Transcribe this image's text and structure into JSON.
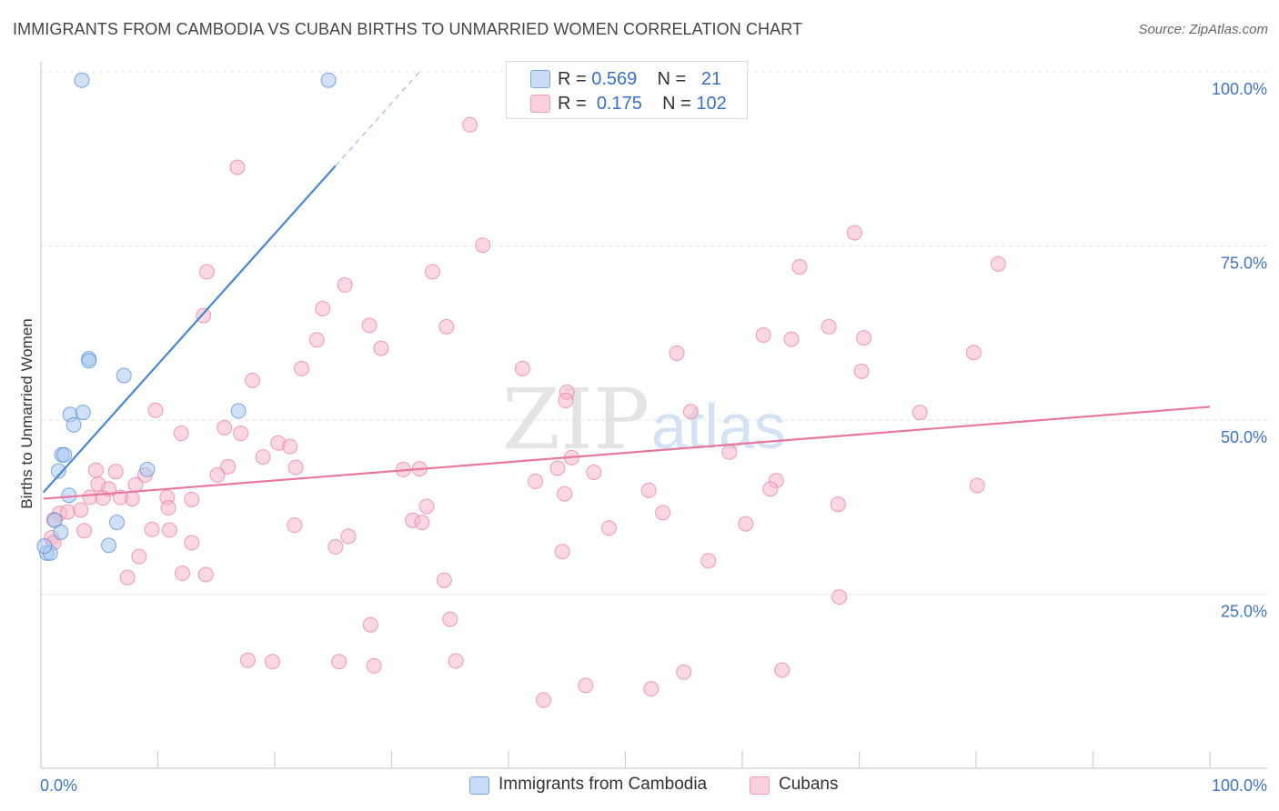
{
  "header": {
    "title": "IMMIGRANTS FROM CAMBODIA VS CUBAN BIRTHS TO UNMARRIED WOMEN CORRELATION CHART",
    "source": "Source: ZipAtlas.com"
  },
  "watermark": {
    "zip": "ZIP",
    "atlas": "atlas"
  },
  "legend": {
    "rows": [
      {
        "r_label": "R =",
        "r": "0.569",
        "n_label": "N =",
        "n": "21",
        "color": "#a9c8f0"
      },
      {
        "r_label": "R =",
        "r": "0.175",
        "n_label": "N =",
        "n": "102",
        "color": "#f7b6cb"
      }
    ]
  },
  "bottom_legend": {
    "items": [
      {
        "label": "Immigrants from Cambodia",
        "color": "#a9c8f0"
      },
      {
        "label": "Cubans",
        "color": "#f7b6cb"
      }
    ]
  },
  "chart_data": {
    "type": "scatter",
    "title": "IMMIGRANTS FROM CAMBODIA VS CUBAN BIRTHS TO UNMARRIED WOMEN CORRELATION CHART",
    "xlabel": "",
    "ylabel": "Births to Unmarried Women",
    "xlim": [
      0,
      100
    ],
    "ylim": [
      0,
      100
    ],
    "x_tick_labels": [
      "0.0%",
      "100.0%"
    ],
    "y_tick_labels": [
      "100.0%",
      "75.0%",
      "50.0%",
      "25.0%"
    ],
    "y_ticks": [
      100,
      75,
      50,
      25
    ],
    "grid": "horizontal dashed",
    "legend_position": "top-center",
    "colors": {
      "cambodia": "#4a86d4",
      "cubans": "#e8779e"
    },
    "series": [
      {
        "name": "Immigrants from Cambodia",
        "color": "#a9c8f0",
        "stroke": "#4a86d4",
        "trend": {
          "x0": 0.2,
          "y0": 39.6,
          "x1": 25.2,
          "y1": 86.5,
          "dash_to_x": 32.4,
          "dash_to_y": 100
        },
        "points": [
          [
            3.5,
            98.8
          ],
          [
            24.6,
            98.8
          ],
          [
            4.1,
            58.8
          ],
          [
            4.1,
            58.5
          ],
          [
            7.1,
            56.4
          ],
          [
            2.5,
            50.8
          ],
          [
            3.6,
            51.1
          ],
          [
            2.8,
            49.3
          ],
          [
            16.9,
            51.3
          ],
          [
            1.8,
            45.0
          ],
          [
            2.0,
            45.0
          ],
          [
            1.5,
            42.7
          ],
          [
            9.1,
            42.9
          ],
          [
            2.4,
            39.2
          ],
          [
            1.2,
            35.6
          ],
          [
            6.5,
            35.3
          ],
          [
            1.7,
            33.9
          ],
          [
            5.8,
            32.0
          ],
          [
            0.5,
            30.9
          ],
          [
            0.8,
            30.9
          ],
          [
            0.3,
            31.9
          ]
        ]
      },
      {
        "name": "Cubans",
        "color": "#f7b6cb",
        "stroke": "#e8779e",
        "trend": {
          "x0": 0.2,
          "y0": 38.7,
          "x1": 100,
          "y1": 51.9
        },
        "points": [
          [
            36.7,
            92.4
          ],
          [
            16.8,
            86.3
          ],
          [
            69.6,
            76.9
          ],
          [
            37.8,
            75.1
          ],
          [
            14.2,
            71.3
          ],
          [
            33.5,
            71.3
          ],
          [
            64.9,
            72.0
          ],
          [
            81.9,
            72.4
          ],
          [
            26.0,
            69.4
          ],
          [
            24.1,
            66.0
          ],
          [
            13.9,
            65.0
          ],
          [
            28.1,
            63.6
          ],
          [
            34.7,
            63.4
          ],
          [
            67.4,
            63.4
          ],
          [
            23.6,
            61.5
          ],
          [
            61.8,
            62.2
          ],
          [
            64.2,
            61.6
          ],
          [
            70.4,
            61.8
          ],
          [
            29.1,
            60.3
          ],
          [
            54.4,
            59.6
          ],
          [
            79.8,
            59.7
          ],
          [
            41.2,
            57.4
          ],
          [
            22.3,
            57.4
          ],
          [
            70.2,
            57.0
          ],
          [
            18.1,
            55.7
          ],
          [
            45.0,
            54.0
          ],
          [
            44.9,
            52.8
          ],
          [
            55.6,
            51.2
          ],
          [
            75.2,
            51.1
          ],
          [
            9.8,
            51.4
          ],
          [
            15.7,
            48.9
          ],
          [
            17.1,
            48.1
          ],
          [
            12.0,
            48.1
          ],
          [
            20.3,
            46.7
          ],
          [
            21.3,
            46.2
          ],
          [
            58.9,
            45.4
          ],
          [
            19.0,
            44.7
          ],
          [
            45.4,
            44.6
          ],
          [
            16.0,
            43.3
          ],
          [
            21.8,
            43.2
          ],
          [
            44.2,
            43.1
          ],
          [
            31.0,
            42.9
          ],
          [
            32.4,
            43.0
          ],
          [
            47.3,
            42.5
          ],
          [
            4.7,
            42.8
          ],
          [
            6.4,
            42.6
          ],
          [
            15.1,
            42.1
          ],
          [
            8.9,
            42.1
          ],
          [
            62.9,
            41.3
          ],
          [
            42.3,
            41.2
          ],
          [
            4.9,
            40.8
          ],
          [
            5.8,
            40.1
          ],
          [
            8.1,
            40.7
          ],
          [
            62.4,
            40.1
          ],
          [
            80.1,
            40.6
          ],
          [
            52.0,
            39.9
          ],
          [
            44.8,
            39.4
          ],
          [
            4.2,
            38.9
          ],
          [
            5.3,
            38.8
          ],
          [
            7.8,
            38.7
          ],
          [
            10.8,
            38.9
          ],
          [
            12.9,
            38.6
          ],
          [
            6.8,
            38.9
          ],
          [
            68.2,
            37.9
          ],
          [
            1.6,
            36.6
          ],
          [
            2.3,
            36.8
          ],
          [
            3.4,
            37.1
          ],
          [
            10.9,
            37.4
          ],
          [
            53.2,
            36.7
          ],
          [
            31.8,
            35.6
          ],
          [
            32.6,
            35.3
          ],
          [
            33.0,
            37.6
          ],
          [
            21.7,
            34.9
          ],
          [
            1.1,
            35.7
          ],
          [
            9.5,
            34.3
          ],
          [
            3.7,
            34.1
          ],
          [
            11.0,
            34.2
          ],
          [
            48.6,
            34.5
          ],
          [
            60.3,
            35.1
          ],
          [
            26.3,
            33.3
          ],
          [
            0.9,
            33.1
          ],
          [
            1.1,
            32.4
          ],
          [
            12.9,
            32.4
          ],
          [
            25.2,
            31.8
          ],
          [
            44.6,
            31.1
          ],
          [
            8.4,
            30.4
          ],
          [
            57.1,
            29.8
          ],
          [
            12.1,
            28.0
          ],
          [
            14.1,
            27.8
          ],
          [
            7.4,
            27.4
          ],
          [
            34.5,
            27.0
          ],
          [
            68.3,
            24.6
          ],
          [
            35.0,
            21.4
          ],
          [
            28.2,
            20.6
          ],
          [
            17.7,
            15.5
          ],
          [
            19.8,
            15.3
          ],
          [
            25.5,
            15.3
          ],
          [
            28.5,
            14.7
          ],
          [
            35.5,
            15.4
          ],
          [
            63.4,
            14.1
          ],
          [
            55.0,
            13.8
          ],
          [
            46.6,
            11.9
          ],
          [
            52.2,
            11.4
          ],
          [
            43.0,
            9.8
          ]
        ]
      }
    ]
  }
}
